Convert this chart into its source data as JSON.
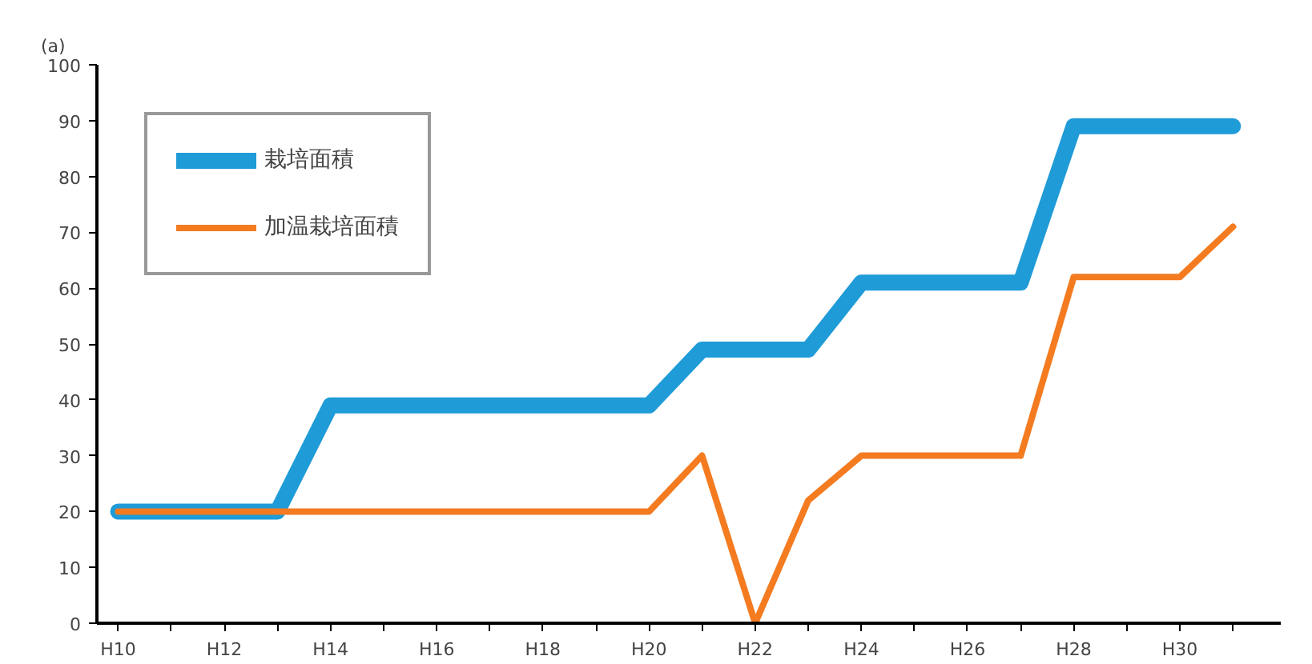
{
  "chart_data": {
    "type": "line",
    "ylabel": "(a)",
    "categories": [
      "H10",
      null,
      "H12",
      null,
      "H14",
      null,
      "H16",
      null,
      "H18",
      null,
      "H20",
      null,
      "H22",
      null,
      "H24",
      null,
      "H26",
      null,
      "H28",
      null,
      "H30",
      null
    ],
    "ylim": [
      0,
      100
    ],
    "yticks": [
      0,
      10,
      20,
      30,
      40,
      50,
      60,
      70,
      80,
      90,
      100
    ],
    "series": [
      {
        "name": "栽培面積",
        "color": "#1f9bd7",
        "values": [
          20,
          20,
          20,
          20,
          39,
          39,
          39,
          39,
          39,
          39,
          39,
          49,
          49,
          49,
          61,
          61,
          61,
          61,
          89,
          89,
          89,
          89
        ]
      },
      {
        "name": "加温栽培面積",
        "color": "#f47b20",
        "values": [
          20,
          20,
          20,
          20,
          20,
          20,
          20,
          20,
          20,
          20,
          20,
          30,
          0,
          22,
          30,
          30,
          30,
          30,
          62,
          62,
          62,
          71
        ]
      }
    ],
    "grid": false,
    "legend": "top left",
    "marker": "none",
    "line_style": "solid"
  }
}
